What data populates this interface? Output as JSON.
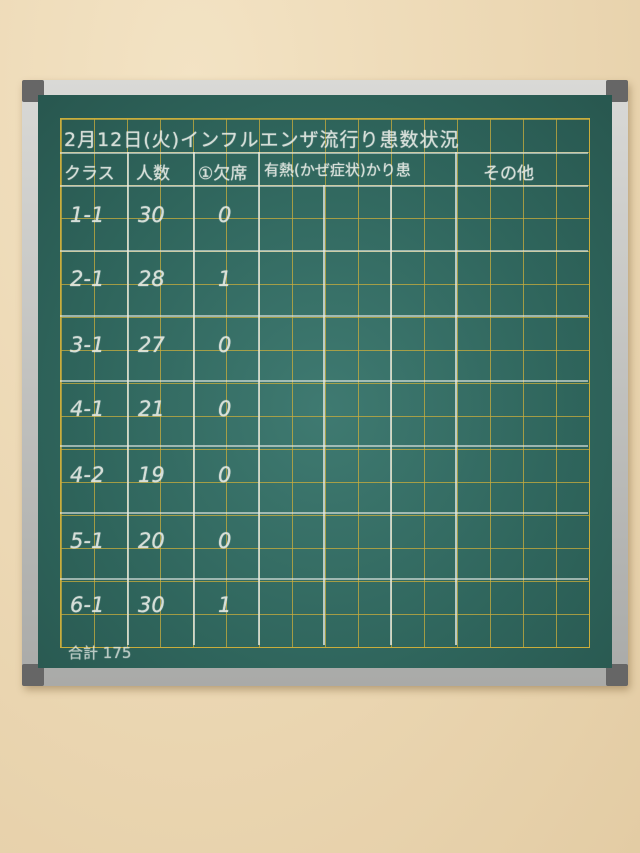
{
  "board": {
    "title": "2月12日(火)インフルエンザ流行り患数状況",
    "headers": [
      "クラス",
      "人数",
      "①欠席",
      "有熱(かぜ症状)かり患",
      "その他"
    ],
    "rows": [
      {
        "class": "1-1",
        "count": "30",
        "absent": "0"
      },
      {
        "class": "2-1",
        "count": "28",
        "absent": "1"
      },
      {
        "class": "3-1",
        "count": "27",
        "absent": "0"
      },
      {
        "class": "4-1",
        "count": "21",
        "absent": "0"
      },
      {
        "class": "4-2",
        "count": "19",
        "absent": "0"
      },
      {
        "class": "5-1",
        "count": "20",
        "absent": "0"
      },
      {
        "class": "6-1",
        "count": "30",
        "absent": "1"
      }
    ],
    "total": "合計 175"
  },
  "colors": {
    "board": "#2f655c",
    "grid": "#c9ad3c",
    "chalk": "#e8ece6",
    "wall": "#ecd8b4"
  }
}
